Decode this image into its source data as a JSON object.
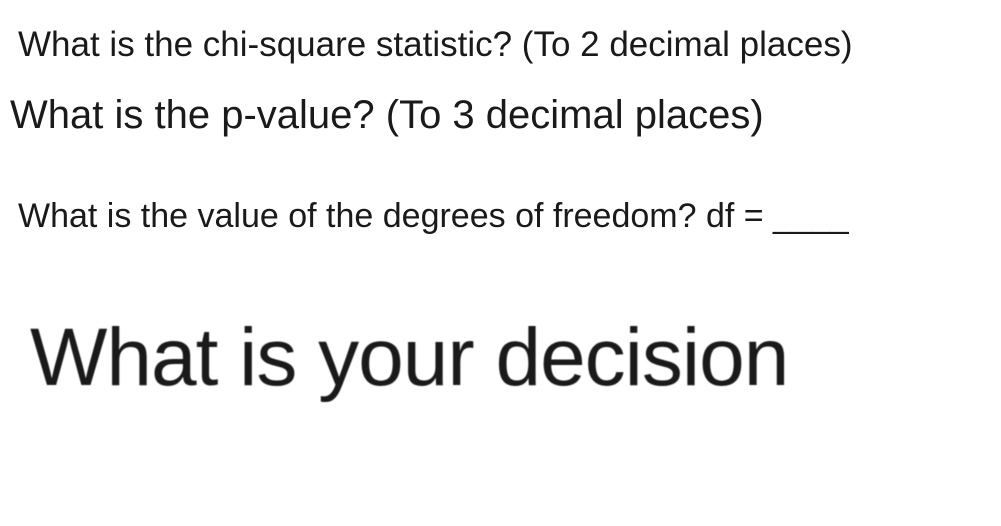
{
  "questions": {
    "q1": {
      "text": "What is the chi-square statistic? (To 2 decimal places)",
      "font_size": 35,
      "color": "#1a1a1a"
    },
    "q2": {
      "text": "What is the p-value? (To 3 decimal places)",
      "font_size": 40,
      "color": "#1a1a1a"
    },
    "q3": {
      "text": "What is the value of the degrees of freedom? df = ____",
      "font_size": 34,
      "color": "#1a1a1a"
    },
    "q4": {
      "text": "What is your decision",
      "font_size": 82,
      "color": "#1a1a1a"
    }
  },
  "background_color": "#ffffff",
  "font_family": "Arial, Helvetica, sans-serif"
}
